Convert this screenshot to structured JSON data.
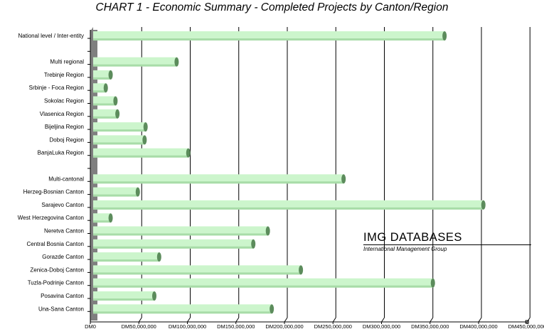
{
  "chart_data": {
    "type": "bar",
    "orientation": "horizontal",
    "title": "CHART 1 - Economic Summary - Completed Projects by Canton/Region",
    "xlabel": "",
    "ylabel": "",
    "xlim": [
      0,
      450000000
    ],
    "grid": "vertical major gridlines",
    "bar_color": "#ccf5cc",
    "bar_end_color": "#5c8c5c",
    "wall_color": "#7f7f7f",
    "x_tick_labels": [
      "DM0",
      "DM50,000,000",
      "DM100,000,000",
      "DM150,000,000",
      "DM200,000,000",
      "DM250,000,000",
      "DM300,000,000",
      "DM350,000,000",
      "DM400,000,000",
      "DM450,000,000"
    ],
    "x_tick_values": [
      0,
      50000000,
      100000000,
      150000000,
      200000000,
      250000000,
      300000000,
      350000000,
      400000000,
      450000000
    ],
    "categories": [
      "National level / Inter-entity",
      "",
      "Multi regional",
      "Trebinje Region",
      "Srbinje - Foca Region",
      "Sokolac Region",
      "Vlasenica Region",
      "Bijeljina Region",
      "Doboj Region",
      "BanjaLuka Region",
      "",
      "Multi-cantonal",
      "Herzeg-Bosnian Canton",
      "Sarajevo Canton",
      "West Herzegovina Canton",
      "Neretva Canton",
      "Central Bosnia Canton",
      "Gorazde Canton",
      "Zenica-Doboj Canton",
      "Tuzla-Podrinje Canton",
      "Posavina Canton",
      "Una-Sana Canton"
    ],
    "values": [
      362000000,
      null,
      86000000,
      18000000,
      13000000,
      23000000,
      25000000,
      54000000,
      53000000,
      98000000,
      null,
      258000000,
      46000000,
      402000000,
      18000000,
      180000000,
      165000000,
      68000000,
      214000000,
      350000000,
      63000000,
      184000000
    ]
  },
  "watermark": {
    "name": "IMG DATABASES",
    "subtitle": "International Management Group"
  }
}
